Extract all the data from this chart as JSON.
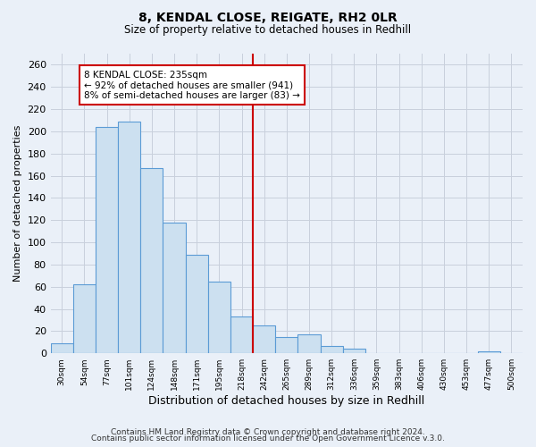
{
  "title": "8, KENDAL CLOSE, REIGATE, RH2 0LR",
  "subtitle": "Size of property relative to detached houses in Redhill",
  "xlabel": "Distribution of detached houses by size in Redhill",
  "ylabel": "Number of detached properties",
  "bin_labels": [
    "30sqm",
    "54sqm",
    "77sqm",
    "101sqm",
    "124sqm",
    "148sqm",
    "171sqm",
    "195sqm",
    "218sqm",
    "242sqm",
    "265sqm",
    "289sqm",
    "312sqm",
    "336sqm",
    "359sqm",
    "383sqm",
    "406sqm",
    "430sqm",
    "453sqm",
    "477sqm",
    "500sqm"
  ],
  "bar_heights": [
    9,
    62,
    204,
    209,
    167,
    118,
    89,
    65,
    33,
    25,
    15,
    17,
    7,
    4,
    0,
    0,
    0,
    0,
    0,
    2,
    0
  ],
  "bar_color": "#cce0f0",
  "bar_edge_color": "#5b9bd5",
  "vline_color": "#cc0000",
  "annotation_text": "8 KENDAL CLOSE: 235sqm\n← 92% of detached houses are smaller (941)\n8% of semi-detached houses are larger (83) →",
  "annotation_box_color": "#ffffff",
  "annotation_box_edge_color": "#cc0000",
  "ylim": [
    0,
    270
  ],
  "yticks": [
    0,
    20,
    40,
    60,
    80,
    100,
    120,
    140,
    160,
    180,
    200,
    220,
    240,
    260
  ],
  "footer_line1": "Contains HM Land Registry data © Crown copyright and database right 2024.",
  "footer_line2": "Contains public sector information licensed under the Open Government Licence v.3.0.",
  "bg_color": "#eaf0f8",
  "grid_color": "#c8d0dc"
}
